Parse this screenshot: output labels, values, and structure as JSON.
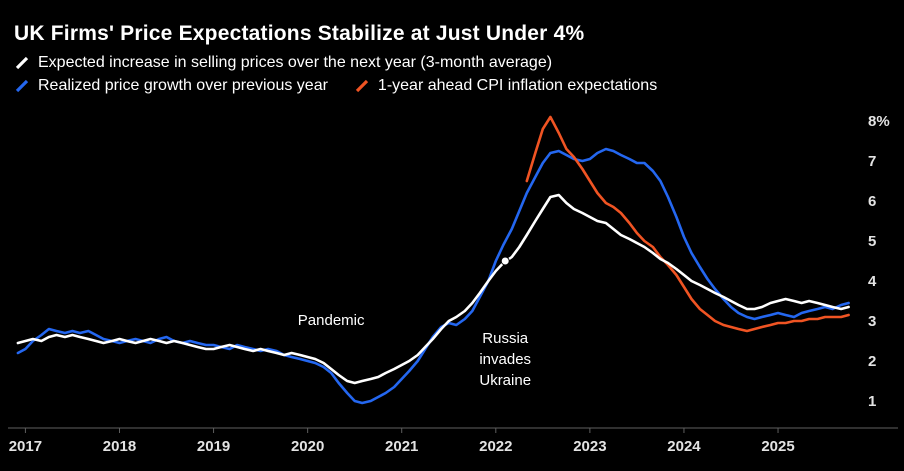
{
  "title": "UK Firms' Price Expectations Stabilize at Just Under 4%",
  "chart_data": {
    "type": "line",
    "title": "UK Firms' Price Expectations Stabilize at Just Under 4%",
    "xlabel": "",
    "ylabel": "",
    "legend_position": "top",
    "grid": false,
    "xlim": [
      2016.9,
      2025.85
    ],
    "ylim": [
      0.325,
      8.6
    ],
    "x_ticks": [
      2017,
      2018,
      2019,
      2020,
      2021,
      2022,
      2023,
      2024,
      2025
    ],
    "y_ticks": [
      {
        "v": 8,
        "label": "8%"
      },
      {
        "v": 7,
        "label": "7"
      },
      {
        "v": 6,
        "label": "6"
      },
      {
        "v": 5,
        "label": "5"
      },
      {
        "v": 4,
        "label": "4"
      },
      {
        "v": 3,
        "label": "3"
      },
      {
        "v": 2,
        "label": "2"
      },
      {
        "v": 1,
        "label": "1"
      }
    ],
    "colors": {
      "background": "#000000",
      "axis": "#5f5f5f",
      "tick_text": "#e3e3e3",
      "title_text": "#ffffff",
      "annotation_text": "#ffffff"
    },
    "legend_rows": [
      [
        0
      ],
      [
        1,
        2
      ]
    ],
    "series": [
      {
        "id": "expected-selling-prices",
        "name": "Expected increase in selling prices over the next year (3-month average)",
        "color": "#ffffff",
        "points": [
          [
            2016.92,
            2.45
          ],
          [
            2017.0,
            2.5
          ],
          [
            2017.08,
            2.55
          ],
          [
            2017.17,
            2.5
          ],
          [
            2017.25,
            2.6
          ],
          [
            2017.33,
            2.65
          ],
          [
            2017.42,
            2.6
          ],
          [
            2017.5,
            2.65
          ],
          [
            2017.58,
            2.6
          ],
          [
            2017.67,
            2.55
          ],
          [
            2017.75,
            2.5
          ],
          [
            2017.83,
            2.45
          ],
          [
            2017.92,
            2.5
          ],
          [
            2018.0,
            2.55
          ],
          [
            2018.08,
            2.5
          ],
          [
            2018.17,
            2.45
          ],
          [
            2018.25,
            2.5
          ],
          [
            2018.33,
            2.55
          ],
          [
            2018.42,
            2.5
          ],
          [
            2018.5,
            2.45
          ],
          [
            2018.58,
            2.5
          ],
          [
            2018.67,
            2.45
          ],
          [
            2018.75,
            2.4
          ],
          [
            2018.83,
            2.35
          ],
          [
            2018.92,
            2.3
          ],
          [
            2019.0,
            2.3
          ],
          [
            2019.08,
            2.35
          ],
          [
            2019.17,
            2.4
          ],
          [
            2019.25,
            2.35
          ],
          [
            2019.33,
            2.3
          ],
          [
            2019.42,
            2.25
          ],
          [
            2019.5,
            2.3
          ],
          [
            2019.58,
            2.25
          ],
          [
            2019.67,
            2.2
          ],
          [
            2019.75,
            2.15
          ],
          [
            2019.83,
            2.2
          ],
          [
            2019.92,
            2.15
          ],
          [
            2020.0,
            2.1
          ],
          [
            2020.08,
            2.05
          ],
          [
            2020.17,
            1.95
          ],
          [
            2020.25,
            1.8
          ],
          [
            2020.33,
            1.65
          ],
          [
            2020.42,
            1.5
          ],
          [
            2020.5,
            1.45
          ],
          [
            2020.58,
            1.5
          ],
          [
            2020.67,
            1.55
          ],
          [
            2020.75,
            1.6
          ],
          [
            2020.83,
            1.7
          ],
          [
            2020.92,
            1.8
          ],
          [
            2021.0,
            1.9
          ],
          [
            2021.08,
            2.0
          ],
          [
            2021.17,
            2.15
          ],
          [
            2021.25,
            2.35
          ],
          [
            2021.33,
            2.55
          ],
          [
            2021.42,
            2.8
          ],
          [
            2021.5,
            3.0
          ],
          [
            2021.58,
            3.1
          ],
          [
            2021.67,
            3.25
          ],
          [
            2021.75,
            3.45
          ],
          [
            2021.83,
            3.7
          ],
          [
            2021.92,
            4.0
          ],
          [
            2022.0,
            4.25
          ],
          [
            2022.08,
            4.45
          ],
          [
            2022.17,
            4.6
          ],
          [
            2022.25,
            4.85
          ],
          [
            2022.33,
            5.15
          ],
          [
            2022.42,
            5.5
          ],
          [
            2022.5,
            5.8
          ],
          [
            2022.58,
            6.1
          ],
          [
            2022.67,
            6.15
          ],
          [
            2022.75,
            5.95
          ],
          [
            2022.83,
            5.8
          ],
          [
            2022.92,
            5.7
          ],
          [
            2023.0,
            5.6
          ],
          [
            2023.08,
            5.5
          ],
          [
            2023.17,
            5.45
          ],
          [
            2023.25,
            5.3
          ],
          [
            2023.33,
            5.15
          ],
          [
            2023.42,
            5.05
          ],
          [
            2023.5,
            4.95
          ],
          [
            2023.58,
            4.85
          ],
          [
            2023.67,
            4.7
          ],
          [
            2023.75,
            4.55
          ],
          [
            2023.83,
            4.45
          ],
          [
            2023.92,
            4.3
          ],
          [
            2024.0,
            4.15
          ],
          [
            2024.08,
            4.0
          ],
          [
            2024.17,
            3.9
          ],
          [
            2024.25,
            3.8
          ],
          [
            2024.33,
            3.7
          ],
          [
            2024.42,
            3.6
          ],
          [
            2024.5,
            3.5
          ],
          [
            2024.58,
            3.4
          ],
          [
            2024.67,
            3.3
          ],
          [
            2024.75,
            3.3
          ],
          [
            2024.83,
            3.35
          ],
          [
            2024.92,
            3.45
          ],
          [
            2025.0,
            3.5
          ],
          [
            2025.08,
            3.55
          ],
          [
            2025.17,
            3.5
          ],
          [
            2025.25,
            3.45
          ],
          [
            2025.33,
            3.5
          ],
          [
            2025.42,
            3.45
          ],
          [
            2025.5,
            3.4
          ],
          [
            2025.58,
            3.35
          ],
          [
            2025.67,
            3.3
          ],
          [
            2025.75,
            3.35
          ]
        ]
      },
      {
        "id": "realized-price-growth",
        "name": "Realized price growth over previous year",
        "color": "#2467f0",
        "points": [
          [
            2016.92,
            2.2
          ],
          [
            2017.0,
            2.3
          ],
          [
            2017.08,
            2.5
          ],
          [
            2017.17,
            2.65
          ],
          [
            2017.25,
            2.8
          ],
          [
            2017.33,
            2.75
          ],
          [
            2017.42,
            2.7
          ],
          [
            2017.5,
            2.75
          ],
          [
            2017.58,
            2.7
          ],
          [
            2017.67,
            2.75
          ],
          [
            2017.75,
            2.65
          ],
          [
            2017.83,
            2.55
          ],
          [
            2017.92,
            2.5
          ],
          [
            2018.0,
            2.45
          ],
          [
            2018.08,
            2.5
          ],
          [
            2018.17,
            2.55
          ],
          [
            2018.25,
            2.5
          ],
          [
            2018.33,
            2.45
          ],
          [
            2018.42,
            2.55
          ],
          [
            2018.5,
            2.6
          ],
          [
            2018.58,
            2.5
          ],
          [
            2018.67,
            2.45
          ],
          [
            2018.75,
            2.5
          ],
          [
            2018.83,
            2.45
          ],
          [
            2018.92,
            2.4
          ],
          [
            2019.0,
            2.4
          ],
          [
            2019.08,
            2.35
          ],
          [
            2019.17,
            2.3
          ],
          [
            2019.25,
            2.4
          ],
          [
            2019.33,
            2.35
          ],
          [
            2019.42,
            2.3
          ],
          [
            2019.5,
            2.25
          ],
          [
            2019.58,
            2.3
          ],
          [
            2019.67,
            2.25
          ],
          [
            2019.75,
            2.15
          ],
          [
            2019.83,
            2.1
          ],
          [
            2019.92,
            2.05
          ],
          [
            2020.0,
            2.0
          ],
          [
            2020.08,
            1.95
          ],
          [
            2020.17,
            1.85
          ],
          [
            2020.25,
            1.7
          ],
          [
            2020.33,
            1.45
          ],
          [
            2020.42,
            1.2
          ],
          [
            2020.5,
            1.0
          ],
          [
            2020.58,
            0.95
          ],
          [
            2020.67,
            1.0
          ],
          [
            2020.75,
            1.1
          ],
          [
            2020.83,
            1.2
          ],
          [
            2020.92,
            1.35
          ],
          [
            2021.0,
            1.55
          ],
          [
            2021.08,
            1.75
          ],
          [
            2021.17,
            2.0
          ],
          [
            2021.25,
            2.3
          ],
          [
            2021.33,
            2.6
          ],
          [
            2021.42,
            2.85
          ],
          [
            2021.5,
            2.95
          ],
          [
            2021.58,
            2.9
          ],
          [
            2021.67,
            3.05
          ],
          [
            2021.75,
            3.25
          ],
          [
            2021.83,
            3.6
          ],
          [
            2021.92,
            4.0
          ],
          [
            2022.0,
            4.5
          ],
          [
            2022.08,
            4.9
          ],
          [
            2022.17,
            5.3
          ],
          [
            2022.25,
            5.75
          ],
          [
            2022.33,
            6.2
          ],
          [
            2022.42,
            6.6
          ],
          [
            2022.5,
            6.95
          ],
          [
            2022.58,
            7.2
          ],
          [
            2022.67,
            7.25
          ],
          [
            2022.75,
            7.15
          ],
          [
            2022.83,
            7.05
          ],
          [
            2022.92,
            7.0
          ],
          [
            2023.0,
            7.05
          ],
          [
            2023.08,
            7.2
          ],
          [
            2023.17,
            7.3
          ],
          [
            2023.25,
            7.25
          ],
          [
            2023.33,
            7.15
          ],
          [
            2023.42,
            7.05
          ],
          [
            2023.5,
            6.95
          ],
          [
            2023.58,
            6.95
          ],
          [
            2023.67,
            6.75
          ],
          [
            2023.75,
            6.5
          ],
          [
            2023.83,
            6.1
          ],
          [
            2023.92,
            5.6
          ],
          [
            2024.0,
            5.1
          ],
          [
            2024.08,
            4.7
          ],
          [
            2024.17,
            4.35
          ],
          [
            2024.25,
            4.05
          ],
          [
            2024.33,
            3.8
          ],
          [
            2024.42,
            3.55
          ],
          [
            2024.5,
            3.35
          ],
          [
            2024.58,
            3.2
          ],
          [
            2024.67,
            3.1
          ],
          [
            2024.75,
            3.05
          ],
          [
            2024.83,
            3.1
          ],
          [
            2024.92,
            3.15
          ],
          [
            2025.0,
            3.2
          ],
          [
            2025.08,
            3.15
          ],
          [
            2025.17,
            3.1
          ],
          [
            2025.25,
            3.2
          ],
          [
            2025.33,
            3.25
          ],
          [
            2025.42,
            3.3
          ],
          [
            2025.5,
            3.35
          ],
          [
            2025.58,
            3.3
          ],
          [
            2025.67,
            3.4
          ],
          [
            2025.75,
            3.45
          ]
        ]
      },
      {
        "id": "cpi-inflation-expectations",
        "name": "1-year ahead CPI inflation expectations",
        "color": "#f05423",
        "points": [
          [
            2022.33,
            6.5
          ],
          [
            2022.42,
            7.2
          ],
          [
            2022.5,
            7.8
          ],
          [
            2022.58,
            8.1
          ],
          [
            2022.67,
            7.7
          ],
          [
            2022.75,
            7.3
          ],
          [
            2022.83,
            7.1
          ],
          [
            2022.92,
            6.8
          ],
          [
            2023.0,
            6.5
          ],
          [
            2023.08,
            6.2
          ],
          [
            2023.17,
            5.95
          ],
          [
            2023.25,
            5.85
          ],
          [
            2023.33,
            5.7
          ],
          [
            2023.42,
            5.45
          ],
          [
            2023.5,
            5.2
          ],
          [
            2023.58,
            5.0
          ],
          [
            2023.67,
            4.85
          ],
          [
            2023.75,
            4.6
          ],
          [
            2023.83,
            4.4
          ],
          [
            2023.92,
            4.15
          ],
          [
            2024.0,
            3.85
          ],
          [
            2024.08,
            3.55
          ],
          [
            2024.17,
            3.3
          ],
          [
            2024.25,
            3.15
          ],
          [
            2024.33,
            3.0
          ],
          [
            2024.42,
            2.9
          ],
          [
            2024.5,
            2.85
          ],
          [
            2024.58,
            2.8
          ],
          [
            2024.67,
            2.75
          ],
          [
            2024.75,
            2.8
          ],
          [
            2024.83,
            2.85
          ],
          [
            2024.92,
            2.9
          ],
          [
            2025.0,
            2.95
          ],
          [
            2025.08,
            2.95
          ],
          [
            2025.17,
            3.0
          ],
          [
            2025.25,
            3.0
          ],
          [
            2025.33,
            3.05
          ],
          [
            2025.42,
            3.05
          ],
          [
            2025.5,
            3.1
          ],
          [
            2025.58,
            3.1
          ],
          [
            2025.67,
            3.1
          ],
          [
            2025.75,
            3.15
          ]
        ]
      }
    ],
    "annotations": [
      {
        "text": "Pandemic",
        "x": 2020.25,
        "y": 2.9,
        "anchor": "middle"
      },
      {
        "text": "Russia\ninvades\nUkraine",
        "x": 2022.1,
        "y": 2.45,
        "anchor": "middle",
        "marker": {
          "x": 2022.1,
          "y": 4.5
        }
      }
    ]
  }
}
